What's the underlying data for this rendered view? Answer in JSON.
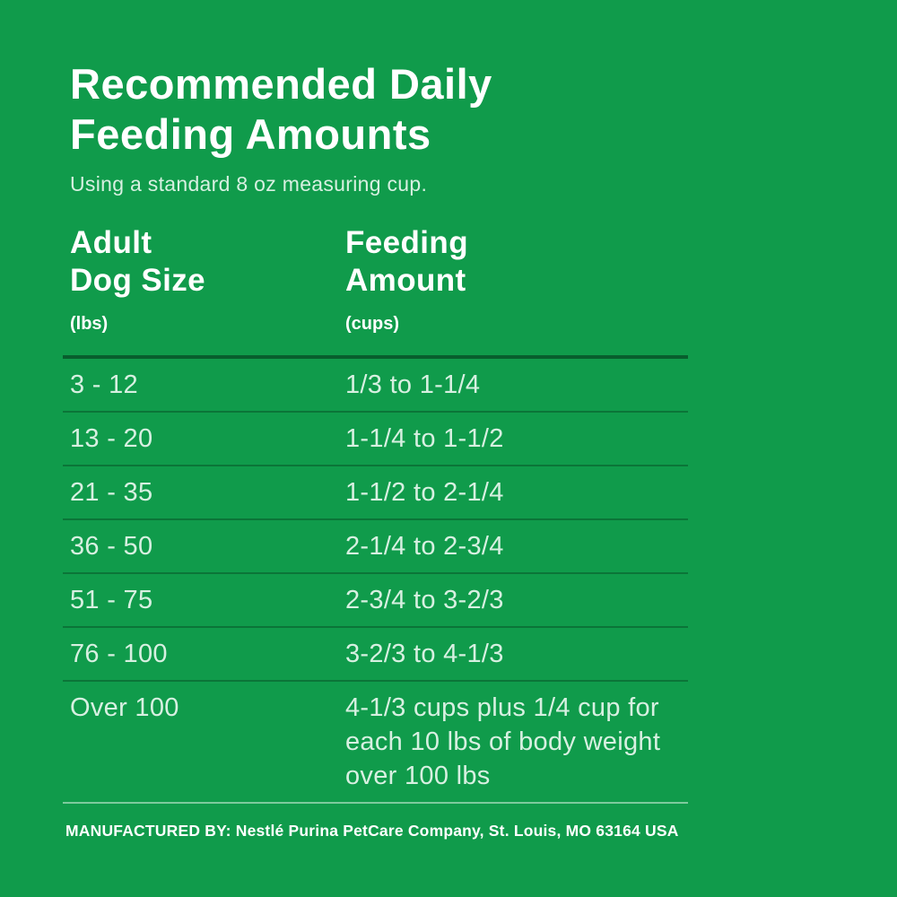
{
  "panel": {
    "bg_color": "#109b4b",
    "title_color": "#ffffff",
    "body_text_color": "#d7f0e1",
    "divider_color": "#0a5e2f",
    "title_lines": [
      "Recommended Daily",
      "Feeding Amounts"
    ],
    "subtitle": "Using a standard 8 oz measuring cup."
  },
  "table": {
    "col1_header_lines": [
      "Adult",
      "Dog Size"
    ],
    "col1_unit": "(lbs)",
    "col2_header_lines": [
      "Feeding",
      "Amount"
    ],
    "col2_unit": "(cups)",
    "rows": [
      {
        "size": "3 - 12",
        "amount": "1/3 to 1-1/4"
      },
      {
        "size": "13 - 20",
        "amount": "1-1/4 to 1-1/2"
      },
      {
        "size": "21 - 35",
        "amount": "1-1/2 to 2-1/4"
      },
      {
        "size": "36 - 50",
        "amount": "2-1/4 to 2-3/4"
      },
      {
        "size": "51 - 75",
        "amount": "2-3/4 to 3-2/3"
      },
      {
        "size": "76 - 100",
        "amount": "3-2/3 to 4-1/3"
      },
      {
        "size": "Over 100",
        "amount": "4-1/3 cups plus 1/4 cup for each 10 lbs of body weight over 100 lbs"
      }
    ]
  },
  "footer": {
    "text": "MANUFACTURED BY: Nestlé Purina PetCare Company, St. Louis, MO 63164 USA"
  }
}
